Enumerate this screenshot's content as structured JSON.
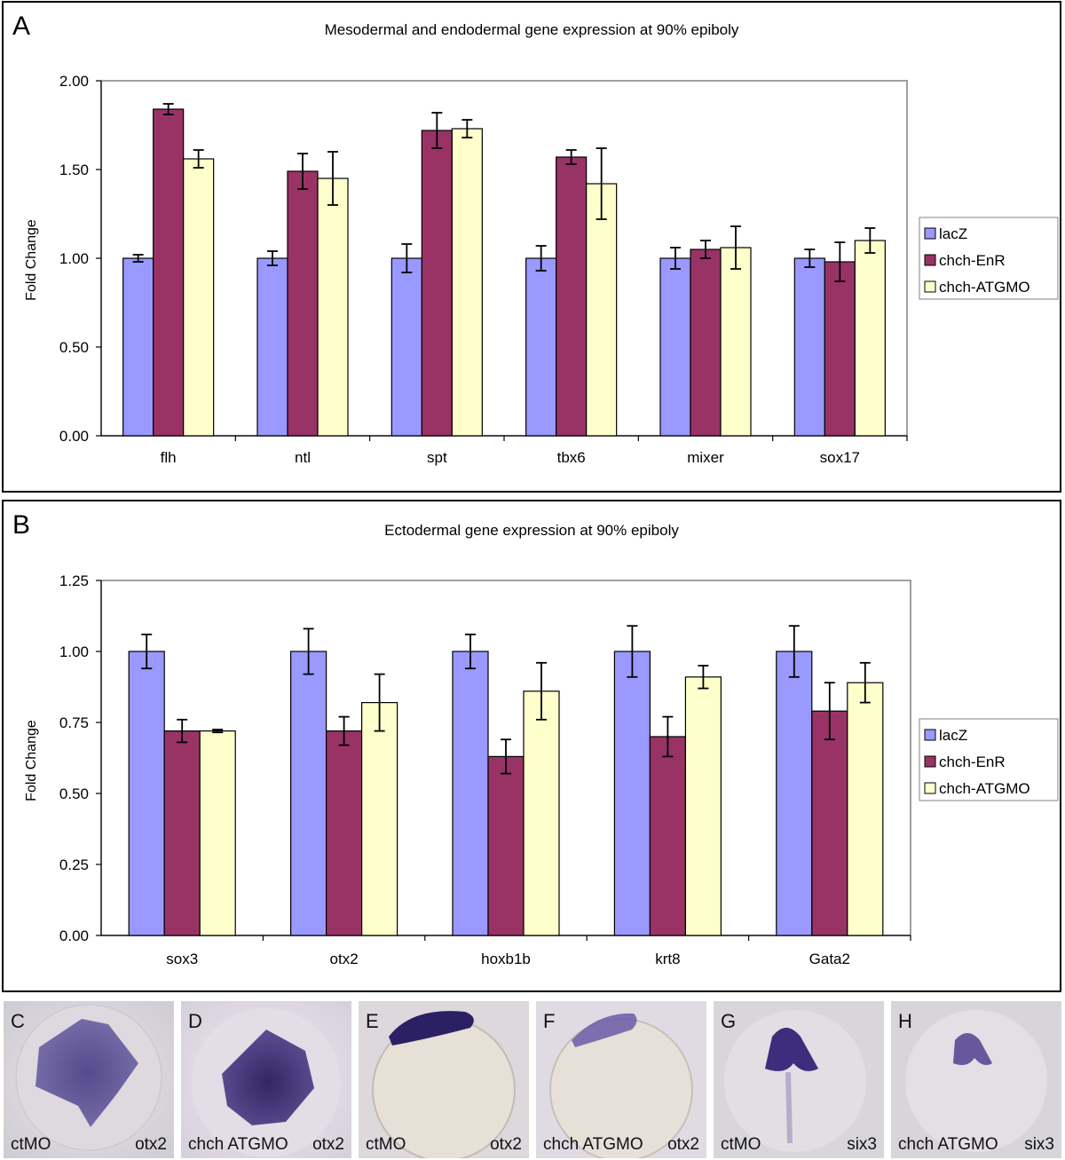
{
  "chart_data": [
    {
      "panel": "A",
      "type": "bar",
      "title": "Mesodermal and endodermal gene expression at 90% epiboly",
      "ylabel": "Fold Change",
      "xlabel": "",
      "ylim": [
        0,
        2.0
      ],
      "yticks": [
        "0.00",
        "0.50",
        "1.00",
        "1.50",
        "2.00"
      ],
      "yticks_values": [
        0,
        0.5,
        1.0,
        1.5,
        2.0
      ],
      "categories": [
        "flh",
        "ntl",
        "spt",
        "tbx6",
        "mixer",
        "sox17"
      ],
      "legend_position": "right",
      "series": [
        {
          "name": "lacZ",
          "color": "#9999ff",
          "values": [
            1.0,
            1.0,
            1.0,
            1.0,
            1.0,
            1.0
          ],
          "errors": [
            0.02,
            0.04,
            0.08,
            0.07,
            0.06,
            0.05
          ]
        },
        {
          "name": "chch-EnR",
          "color": "#993366",
          "values": [
            1.84,
            1.49,
            1.72,
            1.57,
            1.05,
            0.98
          ],
          "errors": [
            0.03,
            0.1,
            0.1,
            0.04,
            0.05,
            0.11
          ]
        },
        {
          "name": "chch-ATGMO",
          "color": "#ffffcc",
          "values": [
            1.56,
            1.45,
            1.73,
            1.42,
            1.06,
            1.1
          ],
          "errors": [
            0.05,
            0.15,
            0.05,
            0.2,
            0.12,
            0.07
          ]
        }
      ]
    },
    {
      "panel": "B",
      "type": "bar",
      "title": "Ectodermal gene expression at 90% epiboly",
      "ylabel": "Fold Change",
      "xlabel": "",
      "ylim": [
        0,
        1.25
      ],
      "yticks": [
        "0.00",
        "0.25",
        "0.50",
        "0.75",
        "1.00",
        "1.25"
      ],
      "yticks_values": [
        0,
        0.25,
        0.5,
        0.75,
        1.0,
        1.25
      ],
      "categories": [
        "sox3",
        "otx2",
        "hoxb1b",
        "krt8",
        "Gata2"
      ],
      "legend_position": "right",
      "series": [
        {
          "name": "lacZ",
          "color": "#9999ff",
          "values": [
            1.0,
            1.0,
            1.0,
            1.0,
            1.0
          ],
          "errors": [
            0.06,
            0.08,
            0.06,
            0.09,
            0.09
          ]
        },
        {
          "name": "chch-EnR",
          "color": "#993366",
          "values": [
            0.72,
            0.72,
            0.63,
            0.7,
            0.79
          ],
          "errors": [
            0.04,
            0.05,
            0.06,
            0.07,
            0.1
          ]
        },
        {
          "name": "chch-ATGMO",
          "color": "#ffffcc",
          "values": [
            0.72,
            0.82,
            0.86,
            0.91,
            0.89
          ],
          "errors": [
            0.005,
            0.1,
            0.1,
            0.04,
            0.07
          ]
        }
      ]
    }
  ],
  "photos": [
    {
      "letter": "C",
      "left": "ctMO",
      "right": "otx2"
    },
    {
      "letter": "D",
      "left": "chch ATGMO",
      "right": "otx2"
    },
    {
      "letter": "E",
      "left": "ctMO",
      "right": "otx2"
    },
    {
      "letter": "F",
      "left": "chch ATGMO",
      "right": "otx2"
    },
    {
      "letter": "G",
      "left": "ctMO",
      "right": "six3"
    },
    {
      "letter": "H",
      "left": "chch ATGMO",
      "right": "six3"
    }
  ]
}
